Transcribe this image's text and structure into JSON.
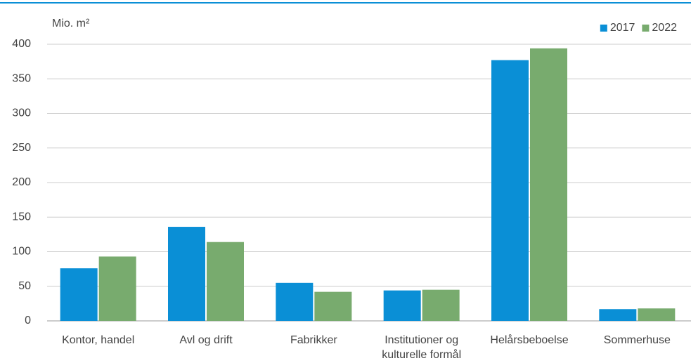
{
  "chart_data": {
    "type": "bar",
    "y_label": "Mio. m²",
    "categories": [
      "Kontor, handel",
      "Avl og drift",
      "Fabrikker",
      "Institutioner og kulturelle formål",
      "Helårsbeboelse",
      "Sommerhuse"
    ],
    "series": [
      {
        "name": "2017",
        "color": "#0a8fd6",
        "values": [
          76,
          136,
          55,
          44,
          377,
          17
        ]
      },
      {
        "name": "2022",
        "color": "#78ab6e",
        "values": [
          93,
          114,
          42,
          45,
          394,
          18
        ]
      }
    ],
    "ylim": [
      0,
      400
    ],
    "yticks": [
      0,
      50,
      100,
      150,
      200,
      250,
      300,
      350,
      400
    ],
    "grid": true,
    "legend": "top-right"
  }
}
